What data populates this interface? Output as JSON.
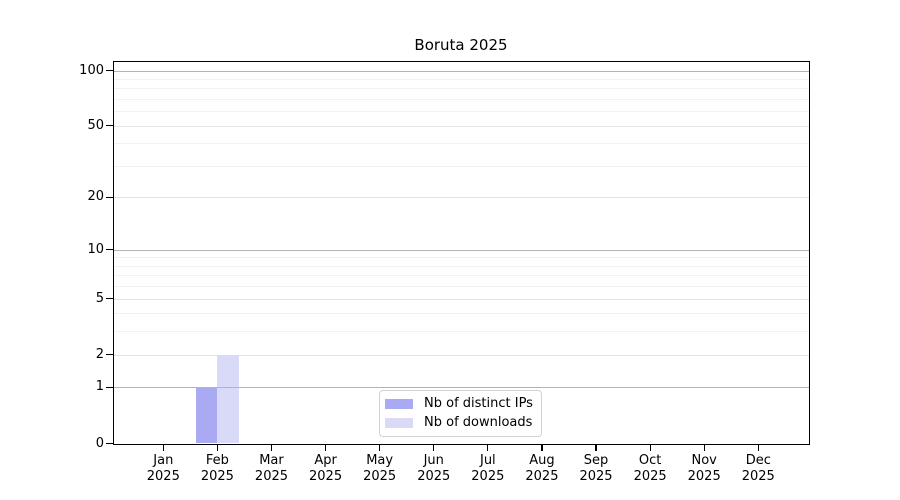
{
  "chart_data": {
    "type": "bar",
    "title": "Boruta 2025",
    "x_axis": {
      "months": [
        "Jan",
        "Feb",
        "Mar",
        "Apr",
        "May",
        "Jun",
        "Jul",
        "Aug",
        "Sep",
        "Oct",
        "Nov",
        "Dec"
      ],
      "year": "2025"
    },
    "y_axis": {
      "scale": "log1p",
      "tick_labels": [
        0,
        1,
        2,
        5,
        10,
        20,
        50,
        100
      ],
      "ylim": [
        0,
        110
      ],
      "major_gridlines": [
        1,
        10,
        100
      ],
      "mid_gridlines": [
        2,
        5,
        20,
        50
      ],
      "minor_gridlines": [
        3,
        4,
        6,
        7,
        8,
        9,
        30,
        40,
        60,
        70,
        80,
        90
      ],
      "grid": true
    },
    "series": [
      {
        "name": "Nb of distinct IPs",
        "color": "#aaaaf2",
        "values": [
          0,
          1,
          0,
          0,
          0,
          0,
          0,
          0,
          0,
          0,
          0,
          0
        ]
      },
      {
        "name": "Nb of downloads",
        "color": "#d9d9f8",
        "values": [
          0,
          2,
          0,
          0,
          0,
          0,
          0,
          0,
          0,
          0,
          0,
          0
        ]
      }
    ],
    "legend": {
      "position": "lower center"
    },
    "colors": {
      "spine": "#000000",
      "grid_major": "#b4b4b4",
      "grid_mid": "#e3e3e3",
      "grid_minor": "#f2f2f2",
      "tick_text": "#000000",
      "legend_border": "#d2d2d2",
      "background": "#ffffff"
    }
  }
}
